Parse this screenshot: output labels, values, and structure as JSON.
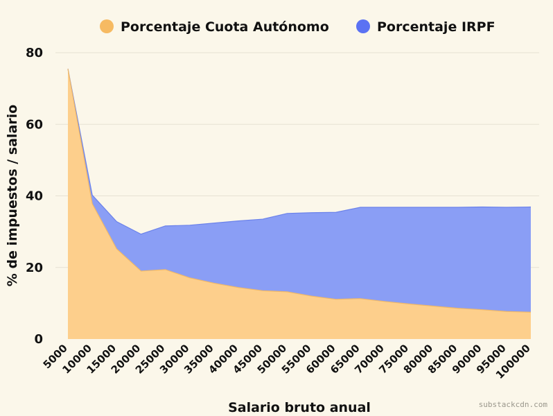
{
  "chart_data": {
    "type": "area",
    "stacked": false,
    "xlabel": "Salario bruto anual",
    "ylabel": "% de impuestos / salario",
    "ylim": [
      0,
      80
    ],
    "yticks": [
      0,
      20,
      40,
      60,
      80
    ],
    "grid": true,
    "legend_position": "top",
    "x": [
      5000,
      10000,
      15000,
      20000,
      25000,
      30000,
      35000,
      40000,
      45000,
      50000,
      55000,
      60000,
      65000,
      70000,
      75000,
      80000,
      85000,
      90000,
      95000,
      100000
    ],
    "series": [
      {
        "name": "Porcentaje IRPF",
        "color": "#8a9ef5",
        "legend_color": "#5b72f3",
        "values": [
          75.5,
          40.2,
          32.8,
          29.3,
          31.6,
          31.8,
          32.4,
          33.0,
          33.5,
          35.1,
          35.3,
          35.4,
          36.8,
          36.8,
          36.8,
          36.8,
          36.8,
          36.9,
          36.8,
          36.9
        ]
      },
      {
        "name": "Porcentaje Cuota Autónomo",
        "color": "#fdcf8c",
        "legend_color": "#f6ba62",
        "values": [
          75.5,
          37.8,
          25.2,
          19.0,
          19.4,
          17.1,
          15.6,
          14.4,
          13.5,
          13.2,
          12.0,
          11.1,
          11.3,
          10.5,
          9.8,
          9.2,
          8.6,
          8.2,
          7.7,
          7.5
        ]
      }
    ]
  },
  "watermark": "substackcdn.com"
}
